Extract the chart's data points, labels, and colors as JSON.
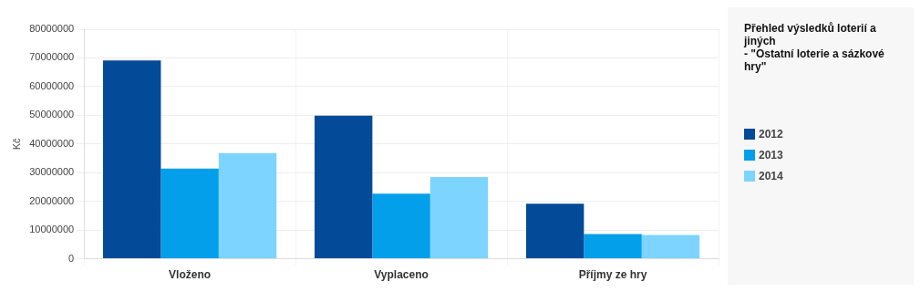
{
  "chart_data": {
    "type": "bar",
    "title": "Přehled výsledků loterií a jiných",
    "subtitle": "- \"Ostatní loterie a sázkové hry\"",
    "ylabel": "Kč",
    "categories": [
      "Vloženo",
      "Vyplaceno",
      "Příjmy ze hry"
    ],
    "series": [
      {
        "name": "2012",
        "color": "#034a98",
        "values": [
          69100000,
          49900000,
          19200000
        ]
      },
      {
        "name": "2013",
        "color": "#039fea",
        "values": [
          31400000,
          22700000,
          8600000
        ]
      },
      {
        "name": "2014",
        "color": "#7dd4fe",
        "values": [
          36800000,
          28500000,
          8300000
        ]
      }
    ],
    "ylim": [
      0,
      80000000
    ],
    "yticks": [
      0,
      10000000,
      20000000,
      30000000,
      40000000,
      50000000,
      60000000,
      70000000,
      80000000
    ],
    "grid": true,
    "legend": "right"
  }
}
